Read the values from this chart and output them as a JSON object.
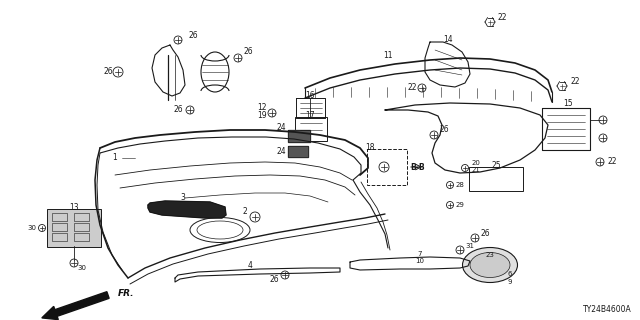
{
  "diagram_code": "TY24B4600A",
  "bg_color": "#ffffff",
  "line_color": "#1a1a1a",
  "text_color": "#1a1a1a",
  "figsize": [
    6.4,
    3.2
  ],
  "dpi": 100
}
